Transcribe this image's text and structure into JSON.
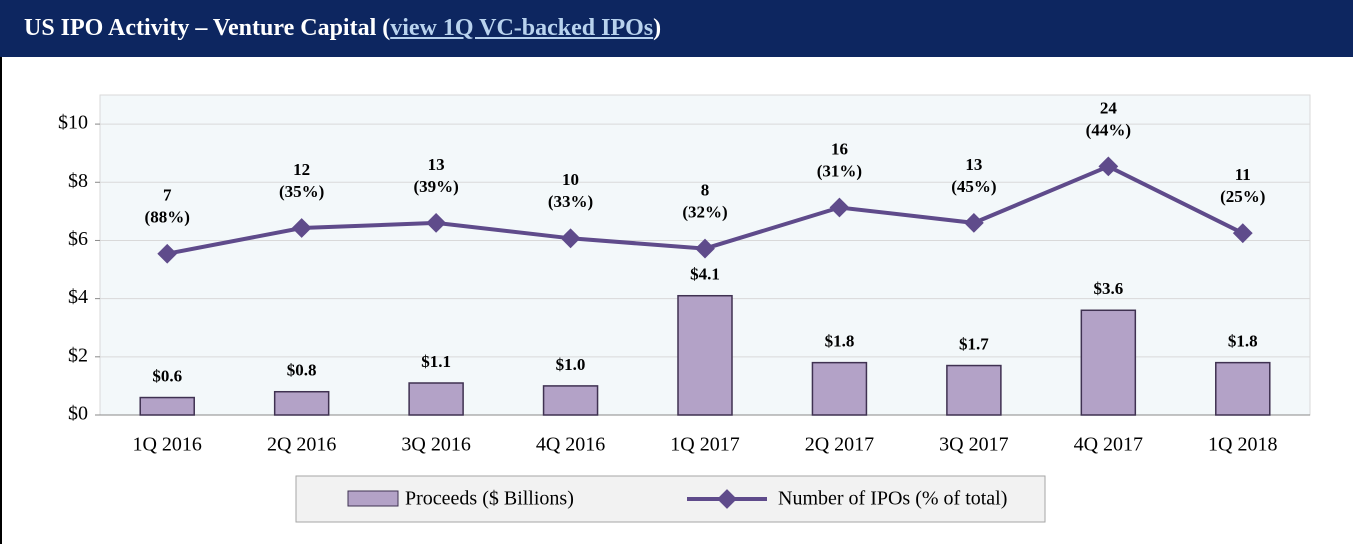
{
  "header": {
    "title": "US IPO Activity – Venture Capital (",
    "link": "view 1Q VC-backed IPOs",
    "title_end": ")"
  },
  "chart_data": {
    "type": "bar",
    "categories": [
      "1Q 2016",
      "2Q 2016",
      "3Q 2016",
      "4Q 2016",
      "1Q 2017",
      "2Q 2017",
      "3Q 2017",
      "4Q 2017",
      "1Q 2018"
    ],
    "series": [
      {
        "name": "Proceeds ($ Billions)",
        "type": "bar",
        "color": "#b3a2c7",
        "values": [
          0.6,
          0.8,
          1.1,
          1.0,
          4.1,
          1.8,
          1.7,
          3.6,
          1.8
        ],
        "value_labels": [
          "$0.6",
          "$0.8",
          "$1.1",
          "$1.0",
          "$4.1",
          "$1.8",
          "$1.7",
          "$3.6",
          "$1.8"
        ]
      },
      {
        "name": "Number of IPOs (% of total)",
        "type": "line",
        "axis": "y2",
        "color": "#5f4b8b",
        "values": [
          7,
          12,
          13,
          10,
          8,
          16,
          13,
          24,
          11
        ],
        "share_labels": [
          "(88%)",
          "(35%)",
          "(39%)",
          "(33%)",
          "(32%)",
          "(31%)",
          "(45%)",
          "(44%)",
          "(25%)"
        ]
      }
    ],
    "ylim": [
      0,
      11
    ],
    "yticks": [
      {
        "value": 0,
        "label": "$0"
      },
      {
        "value": 2,
        "label": "$2"
      },
      {
        "value": 4,
        "label": "$4"
      },
      {
        "value": 6,
        "label": "$6"
      },
      {
        "value": 8,
        "label": "$8"
      },
      {
        "value": 10,
        "label": "$10"
      }
    ],
    "y2lim": [
      -24.4,
      37.9
    ],
    "grid": true,
    "legend": "bottom"
  }
}
